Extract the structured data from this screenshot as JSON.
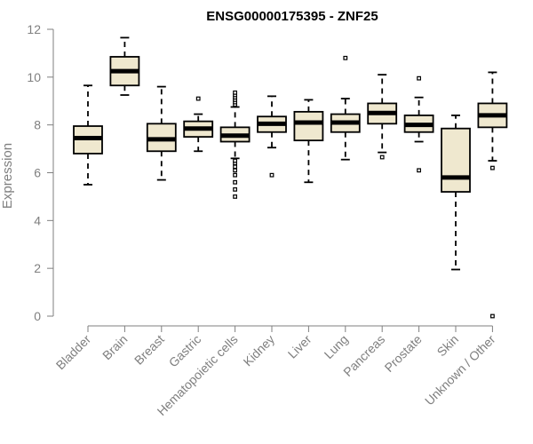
{
  "chart_data": {
    "type": "boxplot",
    "title": "ENSG00000175395 - ZNF25",
    "ylabel": "Expression",
    "xlabel": "",
    "ylim": [
      0,
      12
    ],
    "yticks": [
      0,
      2,
      4,
      6,
      8,
      10,
      12
    ],
    "grid": false,
    "legend": "none",
    "colors": {
      "box_fill": "#efe8cf",
      "box_stroke": "#000000",
      "axis": "#7f7f7f",
      "median": "#000000"
    },
    "categories": [
      "Bladder",
      "Brain",
      "Breast",
      "Gastric",
      "Hematopoietic cells",
      "Kidney",
      "Liver",
      "Lung",
      "Pancreas",
      "Prostate",
      "Skin",
      "Unknown / Other"
    ],
    "boxes": [
      {
        "whisker_low": 5.5,
        "q1": 6.8,
        "median": 7.45,
        "q3": 7.95,
        "whisker_high": 9.65,
        "outliers": []
      },
      {
        "whisker_low": 9.25,
        "q1": 9.65,
        "median": 10.25,
        "q3": 10.85,
        "whisker_high": 11.65,
        "outliers": []
      },
      {
        "whisker_low": 5.7,
        "q1": 6.9,
        "median": 7.4,
        "q3": 8.05,
        "whisker_high": 9.6,
        "outliers": []
      },
      {
        "whisker_low": 6.9,
        "q1": 7.5,
        "median": 7.85,
        "q3": 8.15,
        "whisker_high": 8.45,
        "outliers": [
          9.1
        ]
      },
      {
        "whisker_low": 6.6,
        "q1": 7.3,
        "median": 7.55,
        "q3": 7.9,
        "whisker_high": 8.75,
        "outliers": [
          5.0,
          5.3,
          5.6,
          5.9,
          6.1,
          6.25,
          6.4,
          6.5,
          8.85,
          8.95,
          9.05,
          9.15,
          9.25,
          9.35
        ]
      },
      {
        "whisker_low": 7.05,
        "q1": 7.7,
        "median": 8.05,
        "q3": 8.35,
        "whisker_high": 9.2,
        "outliers": [
          5.9
        ]
      },
      {
        "whisker_low": 5.6,
        "q1": 7.35,
        "median": 8.1,
        "q3": 8.55,
        "whisker_high": 9.05,
        "outliers": []
      },
      {
        "whisker_low": 6.55,
        "q1": 7.7,
        "median": 8.1,
        "q3": 8.45,
        "whisker_high": 9.1,
        "outliers": [
          10.8
        ]
      },
      {
        "whisker_low": 6.85,
        "q1": 8.05,
        "median": 8.5,
        "q3": 8.9,
        "whisker_high": 10.1,
        "outliers": [
          6.65
        ]
      },
      {
        "whisker_low": 7.3,
        "q1": 7.7,
        "median": 8.0,
        "q3": 8.4,
        "whisker_high": 9.15,
        "outliers": [
          6.1,
          9.95
        ]
      },
      {
        "whisker_low": 1.95,
        "q1": 5.2,
        "median": 5.8,
        "q3": 7.85,
        "whisker_high": 8.4,
        "outliers": []
      },
      {
        "whisker_low": 6.5,
        "q1": 7.9,
        "median": 8.4,
        "q3": 8.9,
        "whisker_high": 10.2,
        "outliers": [
          0.0,
          6.2
        ]
      }
    ]
  }
}
